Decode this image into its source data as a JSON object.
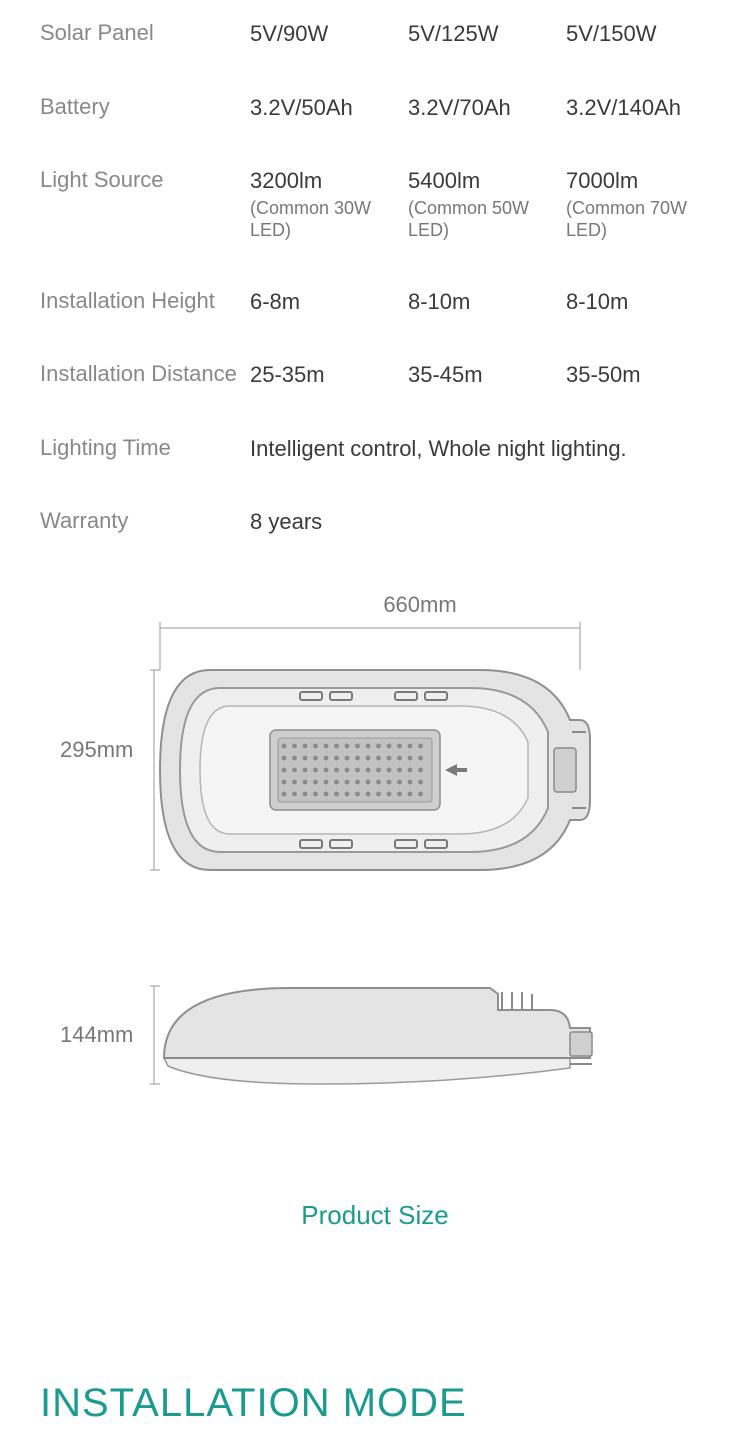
{
  "specs": {
    "rows": [
      {
        "label": "Solar Panel",
        "vals": [
          "5V/90W",
          "5V/125W",
          "5V/150W"
        ]
      },
      {
        "label": "Battery",
        "vals": [
          "3.2V/50Ah",
          "3.2V/70Ah",
          "3.2V/140Ah"
        ]
      },
      {
        "label": "Light Source",
        "vals": [
          "3200lm",
          "5400lm",
          "7000lm"
        ],
        "subs": [
          "(Common 30W LED)",
          "(Common 50W LED)",
          "(Common 70W LED)"
        ]
      },
      {
        "label": "Installation Height",
        "vals": [
          "6-8m",
          "8-10m",
          "8-10m"
        ]
      },
      {
        "label": "Installation Distance",
        "vals": [
          "25-35m",
          "35-45m",
          "35-50m"
        ]
      },
      {
        "label": "Lighting Time",
        "wide": "Intelligent control, Whole night lighting."
      },
      {
        "label": "Warranty",
        "wide": "8 years"
      }
    ]
  },
  "diagram": {
    "width_label": "660mm",
    "height_label": "295mm",
    "depth_label": "144mm",
    "caption": "Product Size",
    "colors": {
      "stroke": "#9a9a9a",
      "fill": "#d8d8d8",
      "led_panel": "#b8b8b8",
      "led_dot": "#9a9a9a",
      "dim_line": "#9a9a9a"
    }
  },
  "section_title": "INSTALLATION MODE",
  "palette": {
    "label_color": "#888888",
    "value_color": "#3a3a3a",
    "accent": "#1b9b8f",
    "background": "#ffffff"
  }
}
